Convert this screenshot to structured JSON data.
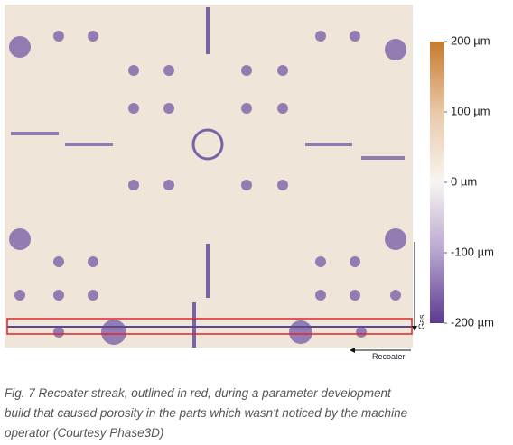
{
  "figure": {
    "colorbar": {
      "ticks": [
        {
          "value": 200,
          "label": "200 µm"
        },
        {
          "value": 100,
          "label": "100 µm"
        },
        {
          "value": 0,
          "label": "0 µm"
        },
        {
          "value": -100,
          "label": "-100 µm"
        },
        {
          "value": -200,
          "label": "-200 µm"
        }
      ]
    },
    "gas_label": "Gas",
    "recoater_label": "Recoater",
    "caption": [
      "Fig. 7 Recoater streak, outlined in red, during a parameter development",
      "build that caused porosity in the parts which wasn't noticed by the machine",
      "operator (Courtesy Phase3D)"
    ]
  }
}
